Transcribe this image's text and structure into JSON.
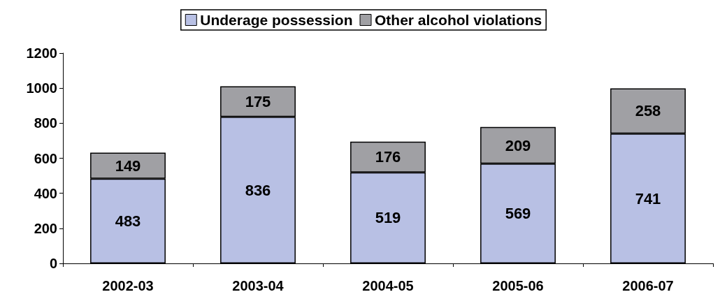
{
  "chart_data": {
    "type": "bar",
    "stacked": true,
    "categories": [
      "2002-03",
      "2003-04",
      "2004-05",
      "2005-06",
      "2006-07"
    ],
    "series": [
      {
        "name": "Underage possession",
        "color": "#b8c0e4",
        "values": [
          483,
          836,
          519,
          569,
          741
        ]
      },
      {
        "name": "Other alcohol violations",
        "color": "#a0a0a4",
        "values": [
          149,
          175,
          176,
          209,
          258
        ]
      }
    ],
    "ylim": [
      0,
      1200
    ],
    "yticks": [
      0,
      200,
      400,
      600,
      800,
      1000,
      1200
    ],
    "grid": false,
    "legend": "top",
    "data_labels": true
  }
}
